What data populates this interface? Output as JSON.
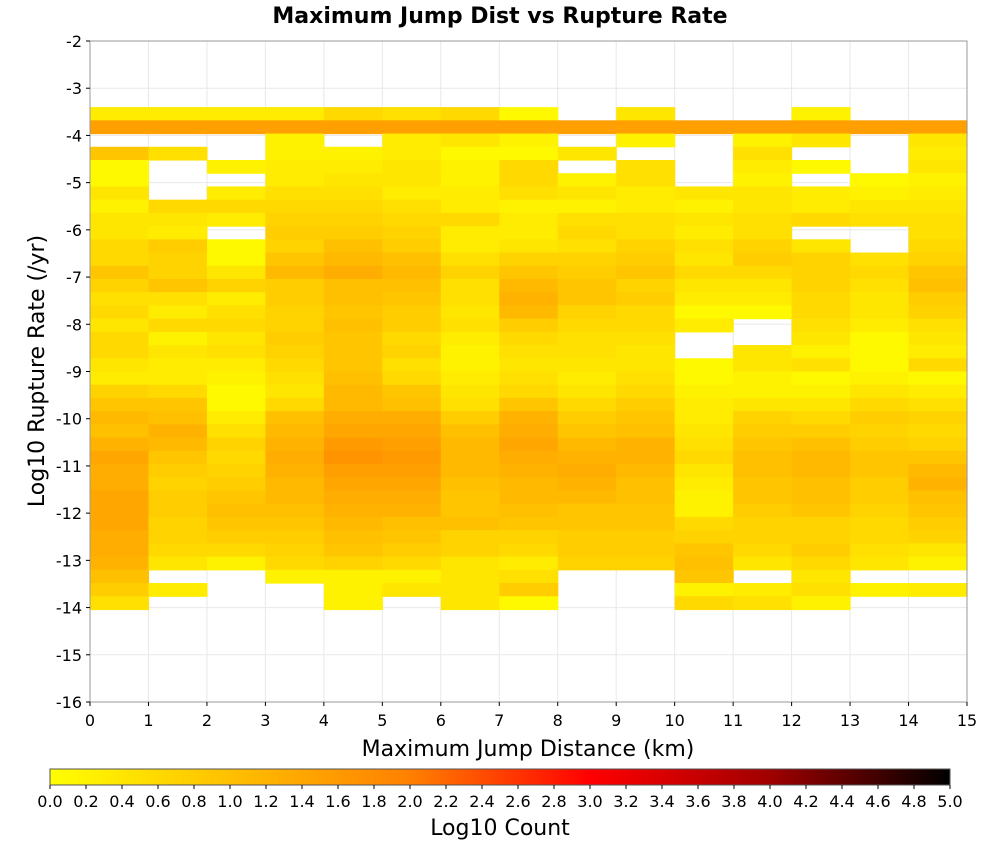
{
  "chart_data": {
    "type": "heatmap",
    "title": "Maximum Jump Dist vs Rupture Rate",
    "xlabel": "Maximum Jump Distance (km)",
    "ylabel": "Log10 Rupture Rate (/yr)",
    "xlim": [
      0,
      15
    ],
    "ylim": [
      -16,
      -2
    ],
    "x_ticks": [
      "0",
      "1",
      "2",
      "3",
      "4",
      "5",
      "6",
      "7",
      "8",
      "9",
      "10",
      "11",
      "12",
      "13",
      "14",
      "15"
    ],
    "y_ticks": [
      "-2",
      "-3",
      "-4",
      "-5",
      "-6",
      "-7",
      "-8",
      "-9",
      "-10",
      "-11",
      "-12",
      "-13",
      "-14",
      "-15",
      "-16"
    ],
    "grid": true,
    "x_bin_width": 1,
    "y_bin_height": 0.28,
    "bins_by_x": [
      {
        "x": 0.5,
        "log10_counts": [
          0,
          0,
          0,
          0,
          0,
          0.3,
          1.5,
          0,
          0.9,
          0.1,
          0.1,
          0.4,
          0.2,
          0.4,
          0.4,
          0.6,
          0.6,
          0.9,
          0.7,
          0.5,
          0.6,
          0.4,
          0.6,
          0.6,
          0.4,
          0.3,
          0.7,
          0.9,
          1.1,
          1.0,
          1.2,
          1.4,
          1.3,
          1.3,
          1.4,
          1.4,
          1.4,
          1.3,
          1.3,
          1.2,
          1.0,
          0.8,
          0.5
        ]
      },
      {
        "x": 1.5,
        "log10_counts": [
          0,
          0,
          0,
          0,
          0,
          0.3,
          1.5,
          0,
          0.5,
          0,
          0,
          0,
          0.6,
          0.4,
          0.3,
          0.8,
          0.7,
          0.7,
          0.9,
          0.5,
          0.3,
          0.6,
          0.2,
          0.4,
          0.3,
          0.3,
          0.6,
          0.9,
          1.0,
          1.2,
          1.1,
          0.9,
          0.8,
          0.7,
          0.8,
          0.8,
          0.7,
          0.7,
          0.6,
          0.4,
          0,
          0.3,
          0
        ]
      },
      {
        "x": 2.5,
        "log10_counts": [
          0,
          0,
          0,
          0,
          0,
          0.3,
          1.5,
          0,
          0,
          0.2,
          0,
          0.3,
          0.6,
          0.3,
          0,
          0.1,
          0.1,
          0.4,
          0.7,
          0.3,
          0.5,
          0.6,
          0.4,
          0.5,
          0.3,
          0.2,
          0.1,
          0.1,
          0.3,
          0.5,
          0.7,
          0.6,
          0.7,
          0.8,
          0.9,
          1.0,
          0.9,
          0.8,
          0.6,
          0.2,
          0,
          0,
          0
        ]
      },
      {
        "x": 3.5,
        "log10_counts": [
          0,
          0,
          0,
          0,
          0,
          0.3,
          1.5,
          0.2,
          0.2,
          0.3,
          0.3,
          0.5,
          0.6,
          0.7,
          0.8,
          0.7,
          0.9,
          1.1,
          0.8,
          0.8,
          0.7,
          0.7,
          0.8,
          0.7,
          0.6,
          0.5,
          0.4,
          0.6,
          1.0,
          1.1,
          1.2,
          1.3,
          1.2,
          1.1,
          1.1,
          1.0,
          0.9,
          0.8,
          0.7,
          0.6,
          0.2,
          0,
          0
        ]
      },
      {
        "x": 4.5,
        "log10_counts": [
          0,
          0,
          0,
          0,
          0,
          0.6,
          1.5,
          0,
          0.2,
          0.3,
          0.4,
          0.5,
          0.6,
          0.7,
          0.8,
          1.0,
          1.1,
          1.3,
          1.0,
          1.0,
          0.9,
          1.0,
          0.9,
          0.9,
          0.9,
          1.0,
          1.1,
          1.1,
          1.3,
          1.4,
          1.6,
          1.7,
          1.5,
          1.4,
          1.3,
          1.2,
          1.1,
          1.0,
          0.9,
          0.7,
          0.2,
          0.2,
          0.2
        ]
      },
      {
        "x": 5.5,
        "log10_counts": [
          0,
          0,
          0,
          0,
          0,
          0.5,
          1.5,
          0.3,
          0.3,
          0.4,
          0.4,
          0.3,
          0.5,
          0.6,
          0.7,
          0.8,
          1.0,
          1.1,
          1.0,
          0.9,
          0.8,
          0.8,
          0.6,
          0.7,
          0.5,
          0.6,
          0.9,
          1.0,
          1.3,
          1.4,
          1.5,
          1.6,
          1.5,
          1.4,
          1.3,
          1.2,
          1.0,
          0.9,
          0.8,
          0.6,
          0.2,
          0.4,
          0
        ]
      },
      {
        "x": 6.5,
        "log10_counts": [
          0,
          0,
          0,
          0,
          0,
          0.6,
          1.5,
          0.4,
          0.1,
          0.2,
          0.2,
          0.3,
          0.3,
          0.6,
          0.3,
          0.3,
          0.5,
          0.7,
          0.5,
          0.5,
          0.4,
          0.5,
          0.3,
          0.2,
          0.2,
          0.3,
          0.4,
          0.5,
          0.8,
          1.0,
          1.1,
          1.1,
          1.1,
          1.0,
          0.9,
          0.9,
          1.0,
          0.7,
          0.7,
          0.4,
          0.4,
          0.4,
          0.4
        ]
      },
      {
        "x": 7.5,
        "log10_counts": [
          0,
          0,
          0,
          0,
          0,
          0.1,
          1.5,
          0.2,
          0.1,
          0.6,
          0.6,
          0.5,
          0.2,
          0.3,
          0.3,
          0.4,
          0.7,
          0.9,
          1.1,
          1.2,
          1.1,
          0.8,
          0.6,
          0.5,
          0.4,
          0.5,
          0.6,
          0.9,
          1.2,
          1.3,
          1.4,
          1.3,
          1.2,
          1.1,
          1.1,
          1.0,
          0.9,
          0.7,
          0.6,
          0.3,
          0.5,
          0.8,
          0.1
        ]
      },
      {
        "x": 8.5,
        "log10_counts": [
          0,
          0,
          0,
          0,
          0,
          0,
          1.5,
          0,
          0.4,
          0,
          0.2,
          0.4,
          0.2,
          0.5,
          0.6,
          0.5,
          0.7,
          0.8,
          0.9,
          0.9,
          0.7,
          0.6,
          0.5,
          0.5,
          0.4,
          0.3,
          0.4,
          0.6,
          0.8,
          0.9,
          1.1,
          1.2,
          1.3,
          1.2,
          1.1,
          0.9,
          0.9,
          0.8,
          0.8,
          0.7,
          0,
          0,
          0
        ]
      },
      {
        "x": 9.5,
        "log10_counts": [
          0,
          0,
          0,
          0,
          0,
          0.4,
          1.5,
          0.2,
          0,
          0.5,
          0.5,
          0.3,
          0.3,
          0.5,
          0.5,
          0.7,
          0.8,
          0.9,
          0.7,
          0.8,
          0.6,
          0.6,
          0.5,
          0.4,
          0.4,
          0.5,
          0.6,
          0.8,
          0.9,
          1.0,
          1.2,
          1.2,
          1.1,
          1.0,
          1.0,
          0.9,
          0.9,
          0.8,
          0.8,
          0.7,
          0,
          0,
          0
        ]
      },
      {
        "x": 10.5,
        "log10_counts": [
          0,
          0,
          0,
          0,
          0,
          0,
          1.5,
          0,
          0,
          0,
          0,
          0.4,
          0.2,
          0.4,
          0.3,
          0.5,
          0.4,
          0.6,
          0.4,
          0.3,
          0.1,
          0.3,
          0,
          0,
          0.1,
          0.1,
          0.2,
          0.3,
          0.3,
          0.4,
          0.5,
          0.6,
          0.4,
          0.3,
          0.2,
          0.2,
          0.6,
          0.7,
          0.9,
          1.0,
          0.9,
          0.2,
          0.6
        ]
      },
      {
        "x": 11.5,
        "log10_counts": [
          0,
          0,
          0,
          0,
          0,
          0,
          1.5,
          0.2,
          0.5,
          0.3,
          0.2,
          0.4,
          0.4,
          0.5,
          0.5,
          0.7,
          0.8,
          0.6,
          0.4,
          0.3,
          0.1,
          0,
          0,
          0.4,
          0.4,
          0.2,
          0.2,
          0.4,
          0.7,
          0.8,
          0.9,
          1.0,
          1.0,
          0.9,
          0.9,
          0.8,
          0.7,
          0.7,
          0.6,
          0.4,
          0,
          0.3,
          0.5
        ]
      },
      {
        "x": 12.5,
        "log10_counts": [
          0,
          0,
          0,
          0,
          0,
          0.2,
          1.5,
          0.4,
          0,
          0.1,
          0,
          0.3,
          0.3,
          0.6,
          0,
          0.4,
          0.7,
          0.7,
          0.7,
          0.6,
          0.6,
          0.5,
          0.4,
          0.2,
          0.5,
          0.1,
          0.2,
          0.4,
          0.6,
          0.8,
          1.0,
          1.1,
          1.1,
          1.0,
          1.0,
          0.9,
          0.7,
          0.7,
          0.8,
          0.6,
          0.4,
          0.5,
          0.2
        ]
      },
      {
        "x": 13.5,
        "log10_counts": [
          0,
          0,
          0,
          0,
          0,
          0,
          1.5,
          0,
          0,
          0,
          0.1,
          0.2,
          0.4,
          0.5,
          0,
          0,
          0.5,
          0.6,
          0.5,
          0.4,
          0.4,
          0.3,
          0.1,
          0.1,
          0.1,
          0.2,
          0.4,
          0.6,
          0.8,
          0.7,
          0.8,
          0.9,
          0.9,
          0.8,
          0.8,
          0.7,
          0.6,
          0.6,
          0.5,
          0.4,
          0,
          0.2,
          0
        ]
      },
      {
        "x": 14.5,
        "log10_counts": [
          0,
          0,
          0,
          0,
          0,
          0,
          1.5,
          0.4,
          0.3,
          0.4,
          0.2,
          0.3,
          0.4,
          0.5,
          0.5,
          0.6,
          0.7,
          0.9,
          1.0,
          0.8,
          0.7,
          0.5,
          0.4,
          0.3,
          0.6,
          0.1,
          0.3,
          0.5,
          0.7,
          0.6,
          0.7,
          0.9,
          1.1,
          1.2,
          1.0,
          0.9,
          0.8,
          0.7,
          0.4,
          0.2,
          0,
          0.3,
          0
        ]
      }
    ],
    "colorbar": {
      "label": "Log10 Count",
      "range": [
        0,
        5
      ],
      "tick_labels": [
        "0.0",
        "0.2",
        "0.4",
        "0.6",
        "0.8",
        "1.0",
        "1.2",
        "1.4",
        "1.6",
        "1.8",
        "2.0",
        "2.2",
        "2.4",
        "2.6",
        "2.8",
        "3.0",
        "3.2",
        "3.4",
        "3.6",
        "3.8",
        "4.0",
        "4.2",
        "4.4",
        "4.6",
        "4.8",
        "5.0"
      ],
      "colors": [
        "#ffff00",
        "#ffc000",
        "#ff8000",
        "#ff0000",
        "#a00000",
        "#000000"
      ]
    }
  }
}
